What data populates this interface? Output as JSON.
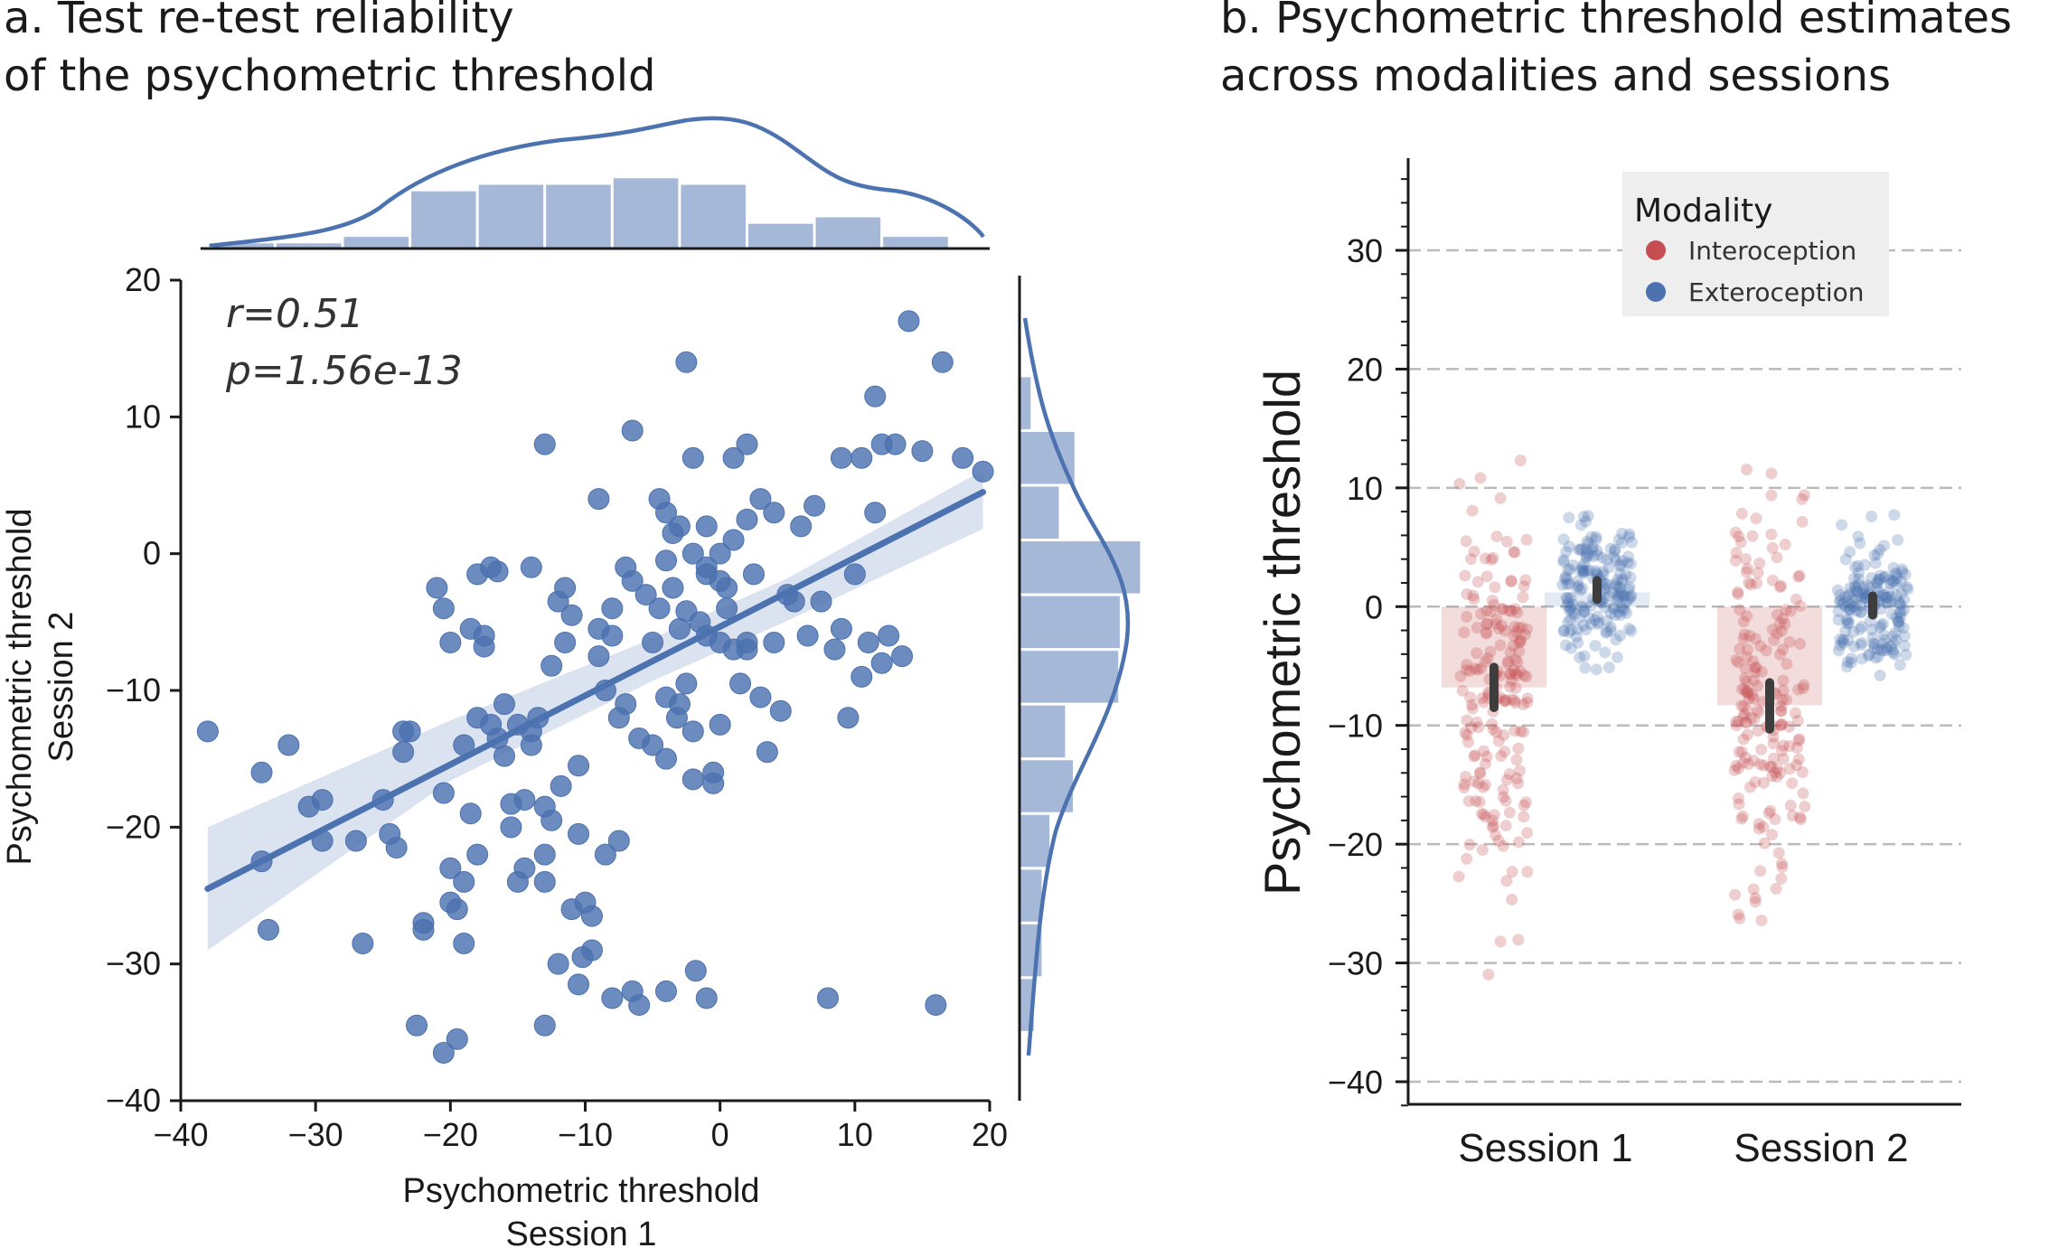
{
  "colors": {
    "blue": "#4c72b0",
    "red": "#c44e52",
    "ci": "#c8d3e8",
    "grid": "#bbbbbb",
    "axis": "#1a1a1a",
    "errbar": "#3d3d3d"
  },
  "panel_a": {
    "title_line1": "a. Test re-test reliability",
    "title_line2": "of the psychometric threshold",
    "stat_r": "r=0.51",
    "stat_p": "p=1.56e-13"
  },
  "panel_b": {
    "title_line1": "b. Psychometric threshold estimates",
    "title_line2": "across modalities and sessions"
  },
  "chart_data": [
    {
      "type": "scatter",
      "title": "a. Test re-test reliability of the psychometric threshold",
      "xlabel_line1": "Psychometric threshold",
      "xlabel_line2": "Session 1",
      "ylabel_line1": "Psychometric threshold",
      "ylabel_line2": "Session 2",
      "xlim": [
        -40,
        20
      ],
      "ylim": [
        -40,
        20
      ],
      "xticks": [
        -40,
        -30,
        -20,
        -10,
        0,
        10,
        20
      ],
      "yticks": [
        -40,
        -30,
        -20,
        -10,
        0,
        10,
        20
      ],
      "points": [
        [
          -38,
          -13
        ],
        [
          -34,
          -16
        ],
        [
          -34,
          -22.5
        ],
        [
          -33.5,
          -27.5
        ],
        [
          -32,
          -14
        ],
        [
          -30.5,
          -18.5
        ],
        [
          -29.5,
          -21
        ],
        [
          -26.5,
          -28.5
        ],
        [
          -25,
          -18
        ],
        [
          -24.5,
          -20.5
        ],
        [
          -23.5,
          -13
        ],
        [
          -23.5,
          -14.5
        ],
        [
          -23,
          -13
        ],
        [
          -22.5,
          -34.5
        ],
        [
          -22,
          -27
        ],
        [
          -21,
          -2.5
        ],
        [
          -20.5,
          -4
        ],
        [
          -20.5,
          -17.5
        ],
        [
          -20.5,
          -36.5
        ],
        [
          -20,
          -6.5
        ],
        [
          -20,
          -23
        ],
        [
          -19.5,
          -35.5
        ],
        [
          -19.5,
          -26
        ],
        [
          -19,
          -14
        ],
        [
          -19,
          -24
        ],
        [
          -19,
          -28.5
        ],
        [
          -18.5,
          -5.5
        ],
        [
          -18.5,
          -19
        ],
        [
          -18,
          -1.5
        ],
        [
          -18,
          -12
        ],
        [
          -17.5,
          -6
        ],
        [
          -17.5,
          -6.8
        ],
        [
          -17,
          -1
        ],
        [
          -17,
          -12.5
        ],
        [
          -16.5,
          -1.3
        ],
        [
          -16,
          -11
        ],
        [
          -16,
          -14.8
        ],
        [
          -15.5,
          -18.3
        ],
        [
          -15.5,
          -20
        ],
        [
          -15,
          -12.5
        ],
        [
          -14.5,
          -18
        ],
        [
          -14.5,
          -23
        ],
        [
          -14,
          -1
        ],
        [
          -14,
          -13
        ],
        [
          -14,
          -14
        ],
        [
          -13.5,
          -12
        ],
        [
          -13,
          -18.5
        ],
        [
          -13,
          -22
        ],
        [
          -12.5,
          -8.2
        ],
        [
          -12.5,
          -19.5
        ],
        [
          -12,
          -3.5
        ],
        [
          -11.8,
          -17
        ],
        [
          -11.5,
          -6.5
        ],
        [
          -11.5,
          -2.5
        ],
        [
          -11,
          -4.5
        ],
        [
          -11,
          -26
        ],
        [
          -10.5,
          -15.5
        ],
        [
          -10.5,
          -20.5
        ],
        [
          -10.2,
          -29.5
        ],
        [
          -10,
          -25.5
        ],
        [
          -9.5,
          -26.5
        ],
        [
          -9.5,
          -29
        ],
        [
          -9,
          -5.5
        ],
        [
          -9,
          -7.5
        ],
        [
          -8.5,
          -10
        ],
        [
          -8.5,
          -22
        ],
        [
          -8,
          -6
        ],
        [
          -8,
          -4
        ],
        [
          -7.5,
          -12
        ],
        [
          -7.5,
          -21
        ],
        [
          -7,
          -11
        ],
        [
          -7,
          -1
        ],
        [
          -6.5,
          -2
        ],
        [
          -6,
          -13.5
        ],
        [
          -5.5,
          -3
        ],
        [
          -5,
          -6.5
        ],
        [
          -5,
          -14
        ],
        [
          -4.5,
          -4
        ],
        [
          -4,
          -10.5
        ],
        [
          -4,
          -15
        ],
        [
          -3.5,
          -2.5
        ],
        [
          -3.2,
          -12
        ],
        [
          -3,
          -5.5
        ],
        [
          -3,
          -11
        ],
        [
          -2.5,
          -4.2
        ],
        [
          -2.5,
          -9.5
        ],
        [
          -2,
          -13
        ],
        [
          -2,
          -16.5
        ],
        [
          -1.5,
          -5
        ],
        [
          -1,
          -1.5
        ],
        [
          -1,
          -6
        ],
        [
          -0.5,
          -16
        ],
        [
          -0.5,
          -16.8
        ],
        [
          0,
          -2
        ],
        [
          0,
          -6.5
        ],
        [
          0,
          -12.5
        ],
        [
          0.5,
          -2.5
        ],
        [
          0.5,
          -4
        ],
        [
          1,
          -7
        ],
        [
          1.5,
          -9.5
        ],
        [
          2,
          -7
        ],
        [
          2,
          -6.5
        ],
        [
          2.5,
          -1.5
        ],
        [
          3,
          -10.5
        ],
        [
          3.5,
          -14.5
        ],
        [
          4,
          -6.5
        ],
        [
          4.5,
          -11.5
        ],
        [
          5,
          -3
        ],
        [
          5.5,
          -3.5
        ],
        [
          6.5,
          -6
        ],
        [
          7.5,
          -3.5
        ],
        [
          8.5,
          -7
        ],
        [
          9,
          -5.5
        ],
        [
          9.5,
          -12
        ],
        [
          10,
          -1.5
        ],
        [
          10.5,
          -9
        ],
        [
          11,
          -6.5
        ],
        [
          11.5,
          3
        ],
        [
          12,
          -8
        ],
        [
          12.5,
          -6
        ],
        [
          13.5,
          -7.5
        ],
        [
          -29.5,
          -18
        ],
        [
          -27,
          -21
        ],
        [
          -24,
          -21.5
        ],
        [
          -22,
          -27.5
        ],
        [
          -20,
          -25.5
        ],
        [
          -18,
          -22
        ],
        [
          -16.5,
          -13.5
        ],
        [
          -15,
          -24
        ],
        [
          -13,
          -24
        ],
        [
          -12,
          -30
        ],
        [
          -10.5,
          -31.5
        ],
        [
          -8,
          -32.5
        ],
        [
          -6,
          -33
        ],
        [
          -4,
          -32
        ],
        [
          -1.8,
          -30.5
        ],
        [
          -1,
          -32.5
        ],
        [
          8,
          -32.5
        ],
        [
          16,
          -33
        ],
        [
          -13,
          -34.5
        ],
        [
          -6.5,
          -32
        ],
        [
          -3.5,
          1.5
        ],
        [
          -2,
          0
        ],
        [
          -1,
          -1
        ],
        [
          0,
          0
        ],
        [
          1,
          1
        ],
        [
          -4,
          -0.5
        ],
        [
          2,
          2.5
        ],
        [
          4,
          3
        ],
        [
          6,
          2
        ],
        [
          7,
          3.5
        ],
        [
          9,
          7
        ],
        [
          10.5,
          7
        ],
        [
          11.5,
          11.5
        ],
        [
          12,
          8
        ],
        [
          13,
          8
        ],
        [
          14,
          17
        ],
        [
          15,
          7.5
        ],
        [
          16.5,
          14
        ],
        [
          18,
          7
        ],
        [
          19.5,
          6
        ],
        [
          -6.5,
          9
        ],
        [
          -13,
          8
        ],
        [
          -9,
          4
        ],
        [
          -4,
          3
        ],
        [
          -2,
          7
        ],
        [
          -1,
          2
        ],
        [
          1,
          7
        ],
        [
          2,
          8
        ],
        [
          3,
          4
        ],
        [
          -3,
          2
        ],
        [
          -4.5,
          4
        ],
        [
          -2.5,
          14
        ]
      ],
      "regression": {
        "x": [
          -38,
          19.5
        ],
        "y": [
          -24.5,
          4.5
        ]
      },
      "ci_band": {
        "x": [
          -38,
          -20,
          -5,
          5,
          19.5
        ],
        "upper": [
          -20,
          -12.2,
          -6.2,
          -1.8,
          6.1
        ],
        "lower": [
          -29,
          -16.6,
          -9.3,
          -4.9,
          1.8
        ]
      },
      "top_histogram": {
        "bin_edges": [
          -38,
          -33,
          -28,
          -23,
          -18,
          -13,
          -8,
          -3,
          2,
          7,
          12,
          17
        ],
        "heights": [
          1,
          1,
          2,
          9,
          10,
          10,
          11,
          10,
          4,
          5,
          2
        ]
      },
      "right_histogram": {
        "bin_edges": [
          -35,
          -31,
          -27,
          -23,
          -19,
          -15,
          -11,
          -7,
          -3,
          1,
          5,
          9,
          13
        ],
        "heights": [
          1,
          1.5,
          1.5,
          2,
          3.5,
          3,
          6.4,
          6.5,
          7.8,
          2.6,
          3.6,
          0.8
        ]
      }
    },
    {
      "type": "bar",
      "title": "b. Psychometric threshold estimates across modalities and sessions",
      "xlabel": "",
      "ylabel": "Psychometric threshold",
      "ylim": [
        -40,
        35
      ],
      "yticks": [
        -40,
        -30,
        -20,
        -10,
        0,
        10,
        20,
        30
      ],
      "categories": [
        "Session 1",
        "Session 2"
      ],
      "legend_title": "Modality",
      "series": [
        {
          "name": "Interoception",
          "values": [
            -6.8,
            -8.3
          ],
          "ci_low": [
            -8.5,
            -10.3
          ],
          "ci_high": [
            -5.1,
            -6.4
          ]
        },
        {
          "name": "Exteroception",
          "values": [
            1.2,
            0.1
          ],
          "ci_low": [
            0.6,
            -0.7
          ],
          "ci_high": [
            2.2,
            0.9
          ]
        }
      ]
    }
  ]
}
